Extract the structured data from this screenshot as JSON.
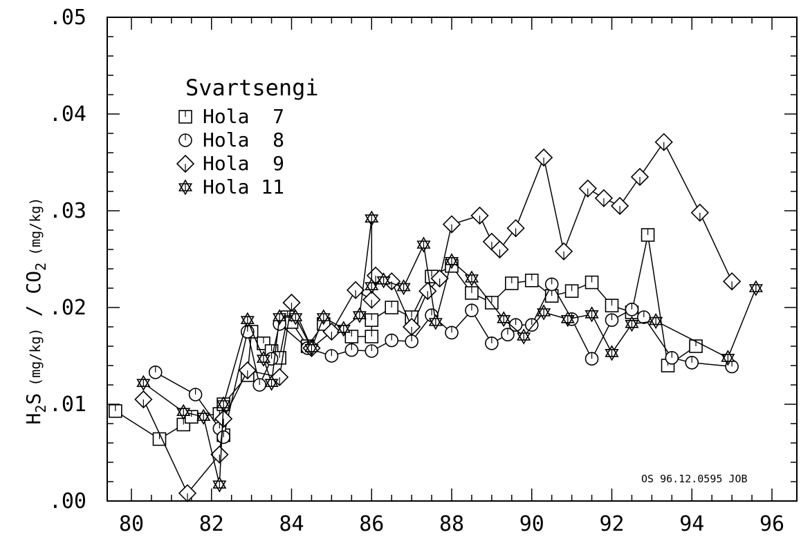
{
  "chart_data": {
    "type": "scatter",
    "title": "Svartsengi",
    "xlabel": "",
    "ylabel_parts": {
      "h2s": "H",
      "h2s_sub": "2",
      "h2s_s": "S",
      "unit1": "(mg/kg)",
      "slash": "/",
      "co2": "CO",
      "co2_sub": "2",
      "unit2": "(mg/kg)"
    },
    "xlim": [
      79.5,
      96.5
    ],
    "ylim": [
      0.0,
      0.05
    ],
    "x_ticks": [
      "80",
      "82",
      "84",
      "86",
      "88",
      "90",
      "92",
      "94",
      "96"
    ],
    "y_ticks": [
      ".00",
      ".01",
      ".02",
      ".03",
      ".04",
      ".05"
    ],
    "grid": false,
    "legend_position": "top-left",
    "annotation": "OS 96.12.0595 JOB",
    "series": [
      {
        "name": "Hola  7",
        "marker": "square",
        "points": [
          [
            79.6,
            0.0093
          ],
          [
            80.7,
            0.0064
          ],
          [
            81.3,
            0.0079
          ],
          [
            81.5,
            0.0087
          ],
          [
            82.2,
            0.009
          ],
          [
            82.3,
            0.0068
          ],
          [
            82.3,
            0.01
          ],
          [
            82.9,
            0.013
          ],
          [
            83.0,
            0.0175
          ],
          [
            83.3,
            0.0163
          ],
          [
            83.5,
            0.0155
          ],
          [
            83.7,
            0.0148
          ],
          [
            83.9,
            0.019
          ],
          [
            84.0,
            0.0185
          ],
          [
            84.4,
            0.016
          ],
          [
            84.8,
            0.0183
          ],
          [
            85.5,
            0.017
          ],
          [
            86.0,
            0.017
          ],
          [
            86.0,
            0.0187
          ],
          [
            86.5,
            0.02
          ],
          [
            87.0,
            0.019
          ],
          [
            87.5,
            0.0232
          ],
          [
            88.0,
            0.0243
          ],
          [
            88.5,
            0.0215
          ],
          [
            89.0,
            0.0205
          ],
          [
            89.5,
            0.0225
          ],
          [
            90.0,
            0.0228
          ],
          [
            90.5,
            0.0212
          ],
          [
            91.0,
            0.0217
          ],
          [
            91.5,
            0.0226
          ],
          [
            92.0,
            0.0202
          ],
          [
            92.5,
            0.0195
          ],
          [
            92.9,
            0.0275
          ],
          [
            93.4,
            0.014
          ],
          [
            94.1,
            0.016
          ]
        ]
      },
      {
        "name": "Hola  8",
        "marker": "circle",
        "points": [
          [
            80.6,
            0.0133
          ],
          [
            81.6,
            0.011
          ],
          [
            82.2,
            0.0075
          ],
          [
            82.3,
            0.0066
          ],
          [
            82.9,
            0.0175
          ],
          [
            83.2,
            0.012
          ],
          [
            83.5,
            0.0147
          ],
          [
            83.7,
            0.0183
          ],
          [
            84.4,
            0.0158
          ],
          [
            85.0,
            0.015
          ],
          [
            85.5,
            0.0156
          ],
          [
            86.0,
            0.0155
          ],
          [
            86.5,
            0.0166
          ],
          [
            87.0,
            0.0165
          ],
          [
            87.5,
            0.0192
          ],
          [
            88.0,
            0.0174
          ],
          [
            88.5,
            0.0197
          ],
          [
            89.0,
            0.0163
          ],
          [
            89.4,
            0.0172
          ],
          [
            89.6,
            0.0182
          ],
          [
            90.0,
            0.0182
          ],
          [
            90.5,
            0.0224
          ],
          [
            91.0,
            0.0188
          ],
          [
            91.5,
            0.0147
          ],
          [
            92.0,
            0.0187
          ],
          [
            92.5,
            0.0198
          ],
          [
            92.8,
            0.019
          ],
          [
            93.5,
            0.0148
          ],
          [
            94.0,
            0.0143
          ],
          [
            95.0,
            0.0139
          ]
        ]
      },
      {
        "name": "Hola  9",
        "marker": "diamond",
        "points": [
          [
            80.3,
            0.0105
          ],
          [
            81.4,
            0.0008
          ],
          [
            82.2,
            0.0048
          ],
          [
            82.3,
            0.0085
          ],
          [
            82.9,
            0.0135
          ],
          [
            83.7,
            0.0128
          ],
          [
            84.0,
            0.0205
          ],
          [
            84.5,
            0.0158
          ],
          [
            85.0,
            0.0175
          ],
          [
            85.6,
            0.0218
          ],
          [
            86.0,
            0.0208
          ],
          [
            86.1,
            0.0233
          ],
          [
            86.5,
            0.0227
          ],
          [
            87.0,
            0.018
          ],
          [
            87.4,
            0.0217
          ],
          [
            87.7,
            0.023
          ],
          [
            88.0,
            0.0286
          ],
          [
            88.7,
            0.0295
          ],
          [
            89.0,
            0.0268
          ],
          [
            89.2,
            0.026
          ],
          [
            89.6,
            0.0282
          ],
          [
            90.3,
            0.0355
          ],
          [
            90.8,
            0.0258
          ],
          [
            91.4,
            0.0323
          ],
          [
            91.8,
            0.0313
          ],
          [
            92.2,
            0.0305
          ],
          [
            92.7,
            0.0335
          ],
          [
            93.3,
            0.0371
          ],
          [
            94.2,
            0.0298
          ],
          [
            95.0,
            0.0227
          ]
        ]
      },
      {
        "name": "Hola 11",
        "marker": "star",
        "points": [
          [
            80.3,
            0.0122
          ],
          [
            81.3,
            0.0092
          ],
          [
            81.8,
            0.0087
          ],
          [
            82.2,
            0.0017
          ],
          [
            82.3,
            0.01
          ],
          [
            82.9,
            0.0187
          ],
          [
            83.3,
            0.0147
          ],
          [
            83.5,
            0.0122
          ],
          [
            83.7,
            0.019
          ],
          [
            84.1,
            0.019
          ],
          [
            84.5,
            0.0158
          ],
          [
            84.8,
            0.019
          ],
          [
            85.3,
            0.0178
          ],
          [
            85.7,
            0.0192
          ],
          [
            86.0,
            0.0292
          ],
          [
            86.0,
            0.0222
          ],
          [
            86.3,
            0.0228
          ],
          [
            86.8,
            0.0221
          ],
          [
            87.3,
            0.0265
          ],
          [
            87.6,
            0.0185
          ],
          [
            88.0,
            0.0248
          ],
          [
            88.5,
            0.023
          ],
          [
            89.3,
            0.0188
          ],
          [
            89.8,
            0.017
          ],
          [
            90.3,
            0.0195
          ],
          [
            90.9,
            0.0188
          ],
          [
            91.5,
            0.0193
          ],
          [
            92.0,
            0.0153
          ],
          [
            92.5,
            0.0183
          ],
          [
            93.1,
            0.0186
          ],
          [
            94.9,
            0.0148
          ],
          [
            95.6,
            0.022
          ]
        ]
      }
    ]
  }
}
